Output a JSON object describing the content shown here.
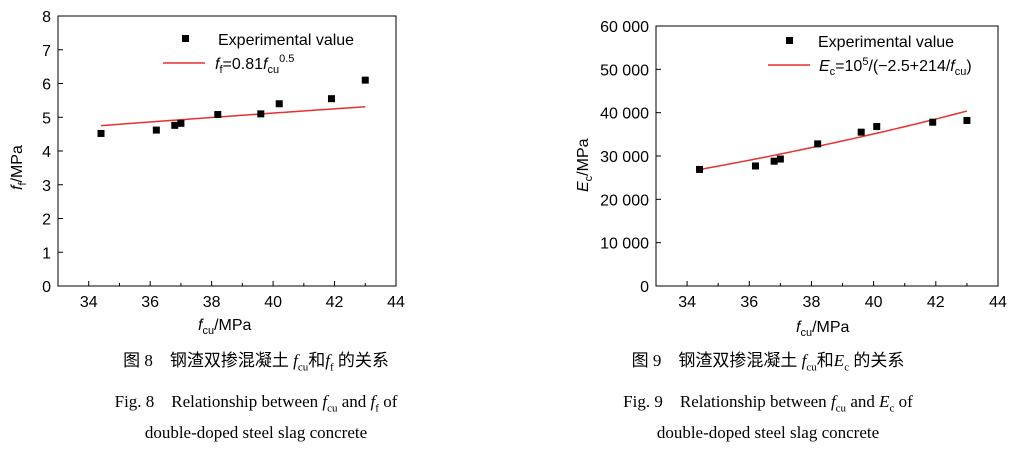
{
  "chart_data": [
    {
      "type": "scatter",
      "title": "",
      "xlabel": "f_cu/MPa",
      "ylabel": "f_f/MPa",
      "xlim": [
        33,
        44
      ],
      "ylim": [
        0,
        8
      ],
      "xticks": [
        "34",
        "36",
        "38",
        "40",
        "42",
        "44"
      ],
      "yticks": [
        "0",
        "1",
        "2",
        "3",
        "4",
        "5",
        "6",
        "7",
        "8"
      ],
      "grid": false,
      "legend_position": "top-right",
      "series": [
        {
          "name": "Experimental value",
          "kind": "points",
          "color": "#000000",
          "x": [
            34.4,
            36.2,
            36.8,
            37.0,
            38.2,
            39.6,
            40.2,
            41.9,
            43.0
          ],
          "y": [
            4.52,
            4.62,
            4.76,
            4.82,
            5.08,
            5.1,
            5.4,
            5.55,
            6.1
          ]
        },
        {
          "name": "f_f=0.81f_cu^0.5",
          "kind": "fit-line",
          "color": "#e8302e",
          "model": "power",
          "coefficient": 0.81,
          "exponent": 0.5,
          "x_range": [
            34.4,
            43.0
          ]
        }
      ],
      "captions": {
        "cn_prefix": "图 8　钢渣双掺混凝土 ",
        "cn_suffix": " 的关系",
        "cn_and": "和",
        "en_line1_prefix": "Fig. 8　Relationship between ",
        "en_and": " and ",
        "en_line1_suffix": " of",
        "en_line2": "double-doped steel slag concrete",
        "var_a": "f",
        "var_a_sub": "cu",
        "var_b": "f",
        "var_b_sub": "f"
      }
    },
    {
      "type": "scatter",
      "title": "",
      "xlabel": "f_cu/MPa",
      "ylabel": "E_c/MPa",
      "xlim": [
        33,
        44
      ],
      "ylim": [
        0,
        60000
      ],
      "xticks": [
        "34",
        "36",
        "38",
        "40",
        "42",
        "44"
      ],
      "yticks": [
        "0",
        "10 000",
        "20 000",
        "30 000",
        "40 000",
        "50 000",
        "60 000"
      ],
      "grid": false,
      "legend_position": "top-right",
      "series": [
        {
          "name": "Experimental value",
          "kind": "points",
          "color": "#000000",
          "x": [
            34.4,
            36.2,
            36.8,
            37.0,
            38.2,
            39.6,
            40.1,
            41.9,
            43.0
          ],
          "y": [
            26900,
            27700,
            28800,
            29300,
            32800,
            35500,
            36800,
            37800,
            38200
          ]
        },
        {
          "name": "E_c=10^5/(-2.5+214/f_cu)",
          "kind": "fit-line",
          "color": "#e8302e",
          "model": "reciprocal",
          "a": -2.5,
          "b": 214,
          "scale": 100000,
          "x_range": [
            34.4,
            43.0
          ]
        }
      ],
      "captions": {
        "cn_prefix": "图 9　钢渣双掺混凝土 ",
        "cn_suffix": " 的关系",
        "cn_and": "和",
        "en_line1_prefix": "Fig. 9　Relationship between ",
        "en_and": " and ",
        "en_line1_suffix": " of",
        "en_line2": "double-doped steel slag concrete",
        "var_a": "f",
        "var_a_sub": "cu",
        "var_b": "E",
        "var_b_sub": "c"
      }
    }
  ],
  "labels": {
    "xlabel_var": "f",
    "xlabel_sub": "cu",
    "unit": "/MPa",
    "fig8_ylabel_var": "f",
    "fig8_ylabel_sub": "f",
    "fig9_ylabel_var": "E",
    "fig9_ylabel_sub": "c",
    "fig8_fit_lhs_var": "f",
    "fig8_fit_lhs_sub": "f",
    "fig8_fit_mid": "=0.81",
    "fig8_fit_rhs_var": "f",
    "fig8_fit_rhs_sub": "cu",
    "fig8_fit_exp": "0.5",
    "fig9_fit_lhs_var": "E",
    "fig9_fit_lhs_sub": "c",
    "fig9_fit_mid": "=10",
    "fig9_fit_exp": "5",
    "fig9_fit_rest": "/(−2.5+214/",
    "fig9_fit_rhs_var": "f",
    "fig9_fit_rhs_sub": "cu",
    "fig9_fit_close": ")"
  }
}
